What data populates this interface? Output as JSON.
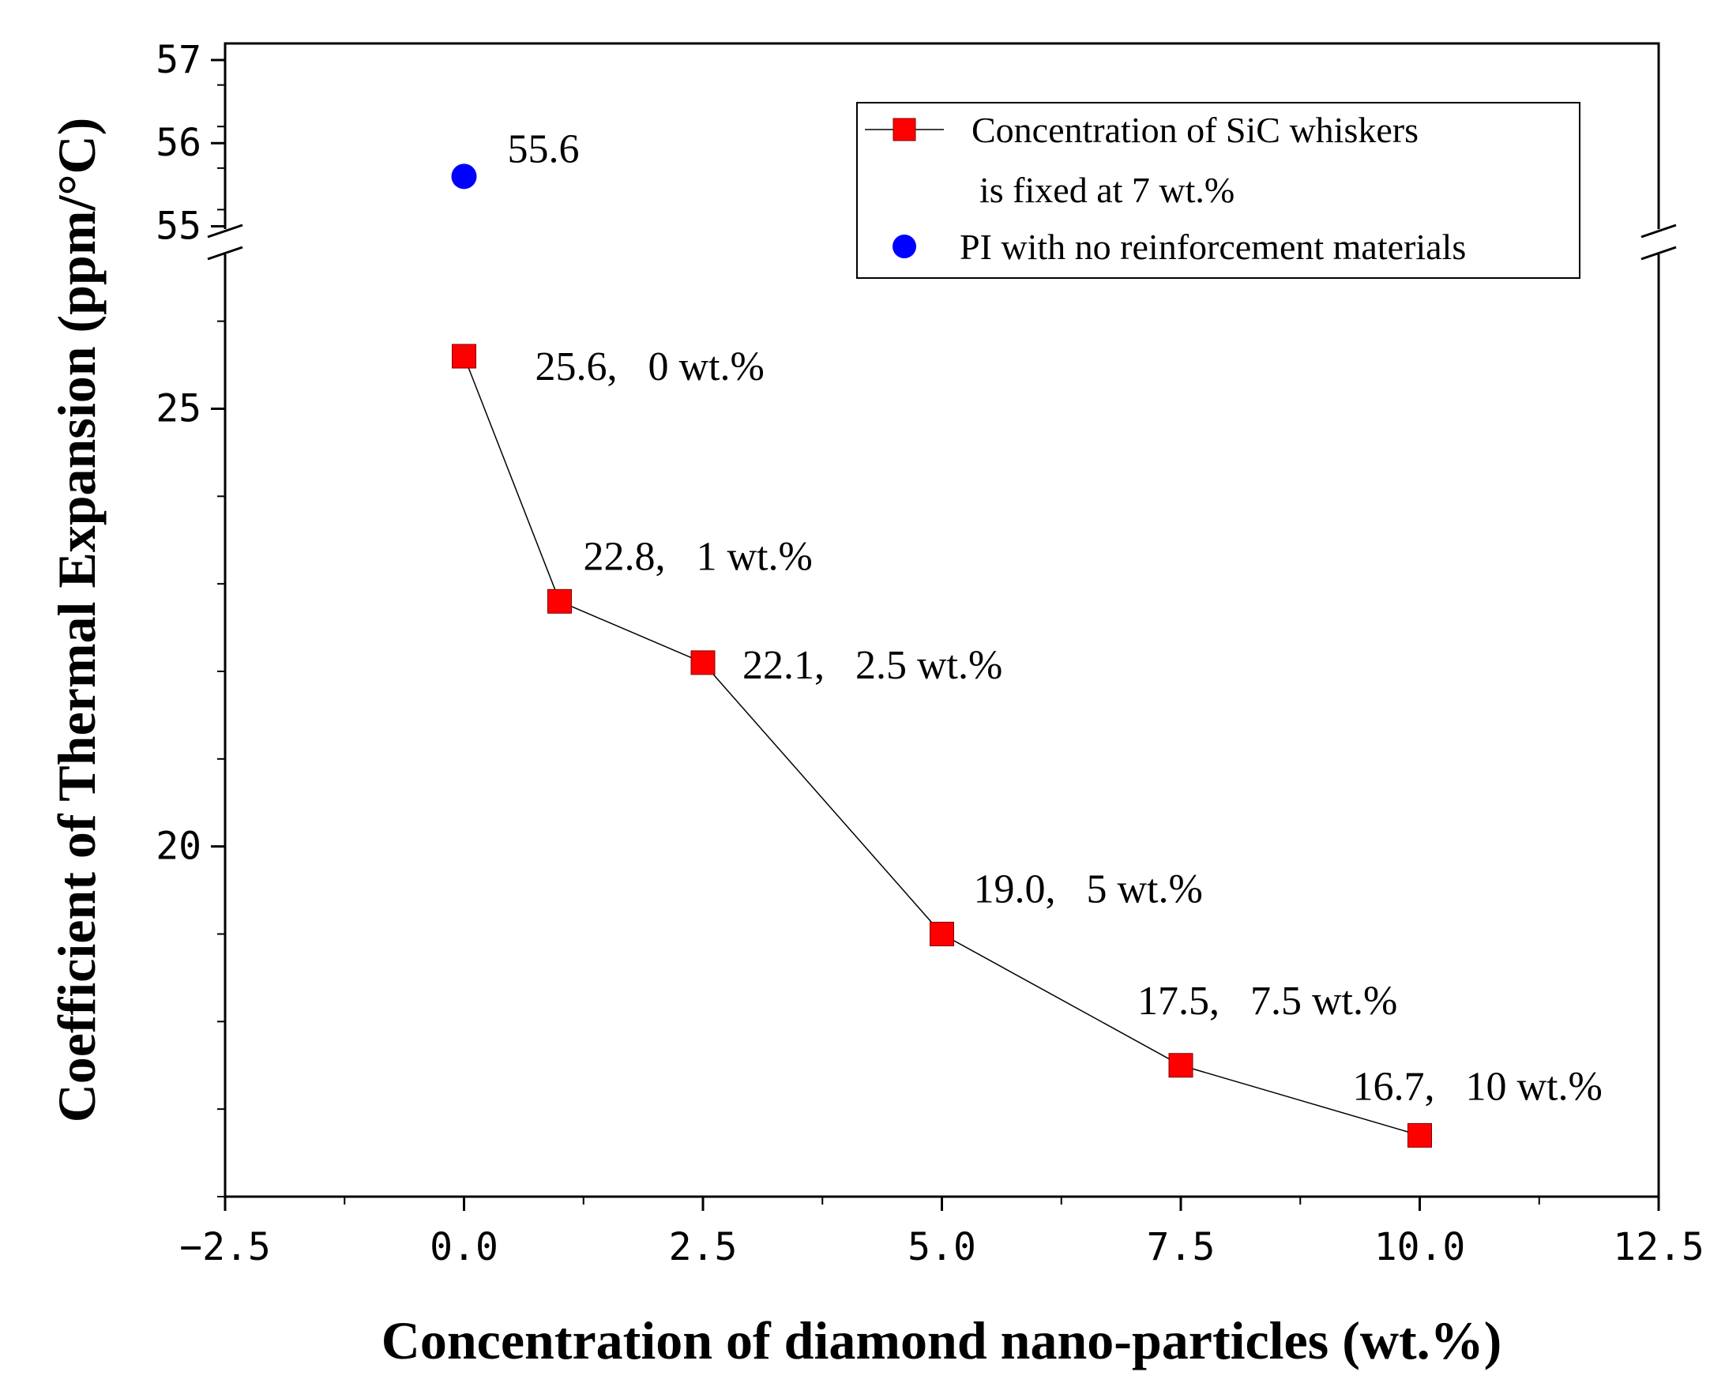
{
  "chart_data": {
    "type": "line",
    "title": "",
    "xlabel": "Concentration of diamond nano-particles (wt.%)",
    "ylabel": "Coefficient of Thermal Expansion (ppm/°C)",
    "xlim": [
      -2.5,
      12.5
    ],
    "x_ticks": [
      -2.5,
      0.0,
      2.5,
      5.0,
      7.5,
      10.0,
      12.5
    ],
    "x_tick_labels": [
      "−2.5",
      "0.0",
      "2.5",
      "5.0",
      "7.5",
      "10.0",
      "12.5"
    ],
    "y_axis_break": {
      "lower_range": [
        16,
        26.8
      ],
      "upper_range": [
        54.7,
        57.2
      ]
    },
    "y_ticks_lower": [
      20,
      25
    ],
    "y_ticks_upper": [
      55,
      56,
      57
    ],
    "series": [
      {
        "name": "Concentration of SiC whiskers is fixed at 7 wt.%",
        "color": "#ff0000",
        "marker": "square",
        "x": [
          0,
          1,
          2.5,
          5,
          7.5,
          10
        ],
        "y": [
          25.6,
          22.8,
          22.1,
          19.0,
          17.5,
          16.7
        ],
        "labels": [
          "25.6,   0 wt.%",
          "22.8,   1 wt.%",
          "22.1,   2.5 wt.%",
          "19.0,   5 wt.%",
          "17.5,   7.5 wt.%",
          "16.7,   10 wt.%"
        ]
      },
      {
        "name": "PI with no reinforcement materials",
        "color": "#0000ff",
        "marker": "circle",
        "x": [
          0
        ],
        "y": [
          55.6
        ],
        "labels": [
          "55.6"
        ]
      }
    ],
    "legend": {
      "position": "top-right",
      "entries": [
        "Concentration of SiC whiskers",
        "is fixed at 7 wt.%",
        "PI with no reinforcement materials"
      ]
    }
  }
}
